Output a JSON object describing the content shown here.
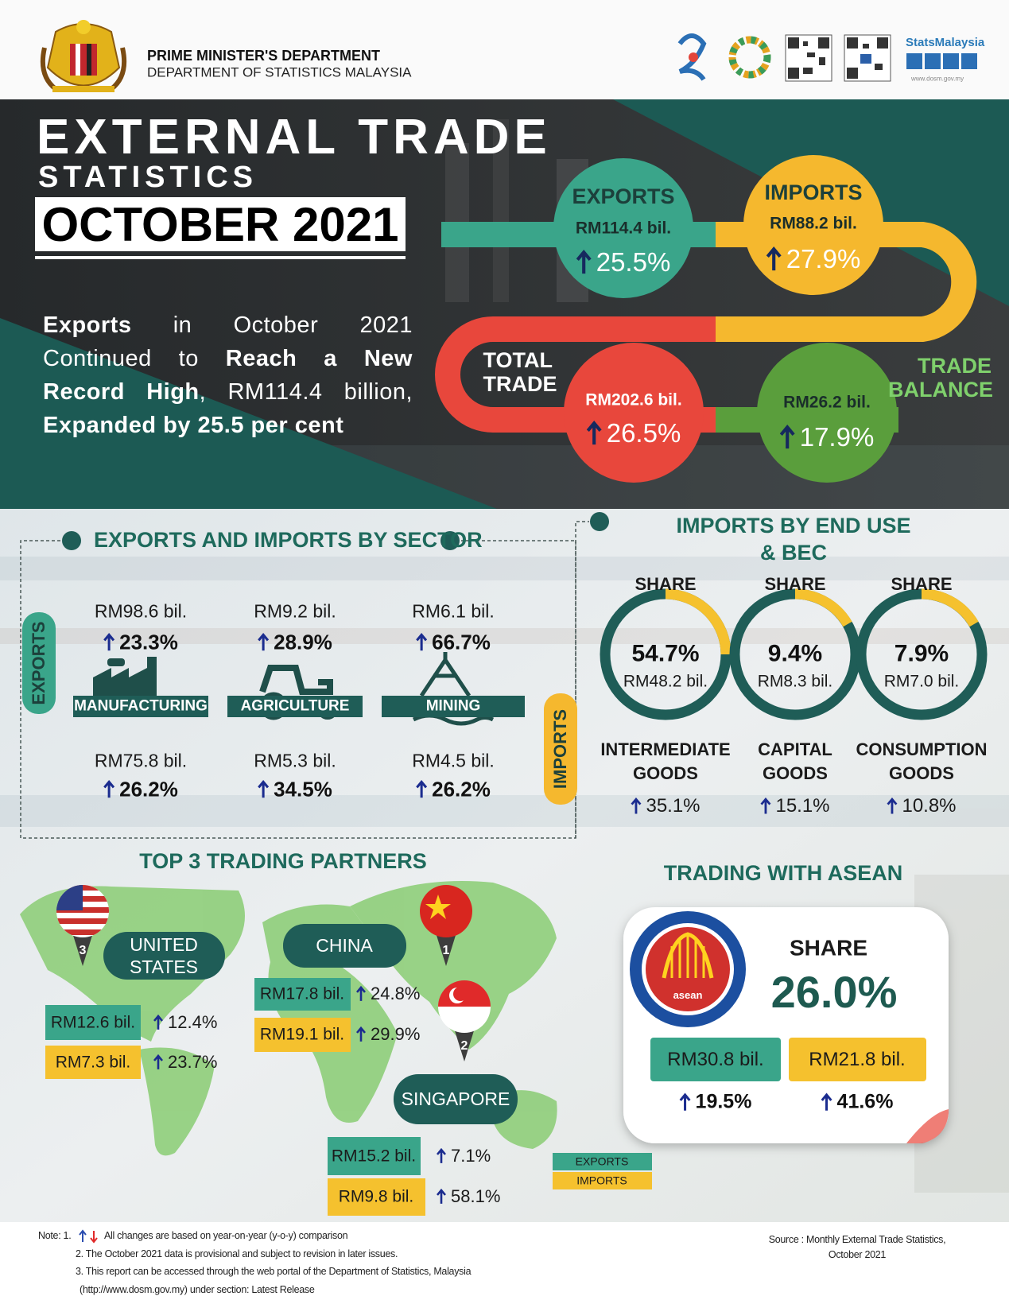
{
  "header": {
    "dept1": "PRIME MINISTER'S DEPARTMENT",
    "dept2": "DEPARTMENT OF STATISTICS MALAYSIA",
    "brand": "StatsMalaysia",
    "url": "www.dosm.gov.my"
  },
  "hero": {
    "title1": "EXTERNAL TRADE",
    "title2": "STATISTICS",
    "period": "OCTOBER 2021",
    "summary": [
      {
        "text": "Exports",
        "bold": true
      },
      {
        "text": " in October 2021 Continued to ",
        "bold": false
      },
      {
        "text": "Reach a New Record High",
        "bold": true
      },
      {
        "text": ", RM114.4 billion, ",
        "bold": false
      },
      {
        "text": "Expanded by 25.5 per cent",
        "bold": true
      }
    ],
    "exports": {
      "label": "EXPORTS",
      "value": "RM114.4 bil.",
      "change": "25.5%"
    },
    "imports": {
      "label": "IMPORTS",
      "value": "RM88.2 bil.",
      "change": "27.9%"
    },
    "total_trade": {
      "label": "TOTAL TRADE",
      "value": "RM202.6 bil.",
      "change": "26.5%"
    },
    "trade_balance": {
      "label": "TRADE BALANCE",
      "value": "RM26.2 bil.",
      "change": "17.9%"
    }
  },
  "sector": {
    "title": "EXPORTS AND IMPORTS BY SECTOR",
    "exports_label": "EXPORTS",
    "imports_label": "IMPORTS",
    "items": [
      {
        "name": "MANUFACTURING",
        "export_value": "RM98.6 bil.",
        "export_change": "23.3%",
        "import_value": "RM75.8 bil.",
        "import_change": "26.2%"
      },
      {
        "name": "AGRICULTURE",
        "export_value": "RM9.2 bil.",
        "export_change": "28.9%",
        "import_value": "RM5.3 bil.",
        "import_change": "34.5%"
      },
      {
        "name": "MINING",
        "export_value": "RM6.1 bil.",
        "export_change": "66.7%",
        "import_value": "RM4.5 bil.",
        "import_change": "26.2%"
      }
    ]
  },
  "end_use": {
    "title_lines": [
      "IMPORTS BY END USE",
      "& BEC"
    ],
    "items": [
      {
        "share_label": "SHARE",
        "share": "54.7%",
        "value": "RM48.2 bil.",
        "name": "INTERMEDIATE GOODS",
        "change": "35.1%"
      },
      {
        "share_label": "SHARE",
        "share": "9.4%",
        "value": "RM8.3 bil.",
        "name": "CAPITAL GOODS",
        "change": "15.1%"
      },
      {
        "share_label": "SHARE",
        "share": "7.9%",
        "value": "RM7.0 bil.",
        "name": "CONSUMPTION GOODS",
        "change": "10.8%"
      }
    ]
  },
  "partners": {
    "title": "TOP 3 TRADING PARTNERS",
    "list": [
      {
        "rank": "3",
        "name": "UNITED STATES",
        "export": "RM12.6 bil.",
        "export_change": "12.4%",
        "import": "RM7.3 bil.",
        "import_change": "23.7%"
      },
      {
        "rank": "1",
        "name": "CHINA",
        "export": "RM17.8 bil.",
        "export_change": "24.8%",
        "import": "RM19.1 bil.",
        "import_change": "29.9%"
      },
      {
        "rank": "2",
        "name": "SINGAPORE",
        "export": "RM15.2 bil.",
        "export_change": "7.1%",
        "import": "RM9.8 bil.",
        "import_change": "58.1%"
      }
    ],
    "legend": [
      "EXPORTS",
      "IMPORTS"
    ]
  },
  "asean": {
    "title": "TRADING WITH ASEAN",
    "logo_text": "asean",
    "share_label": "SHARE",
    "share": "26.0%",
    "export": "RM30.8 bil.",
    "export_change": "19.5%",
    "import": "RM21.8 bil.",
    "import_change": "41.6%"
  },
  "footer": {
    "note_lead": "Note: 1.",
    "notes": [
      "All changes are based on year-on-year (y-o-y) comparison",
      "2. The October 2021 data is provisional and subject to revision in later issues.",
      "3. This report can be accessed through the web portal of the Department of Statistics, Malaysia",
      "(http://www.dosm.gov.my) under section: Latest Release"
    ],
    "source_lines": [
      "Source : Monthly External Trade Statistics,",
      "October 2021"
    ]
  }
}
